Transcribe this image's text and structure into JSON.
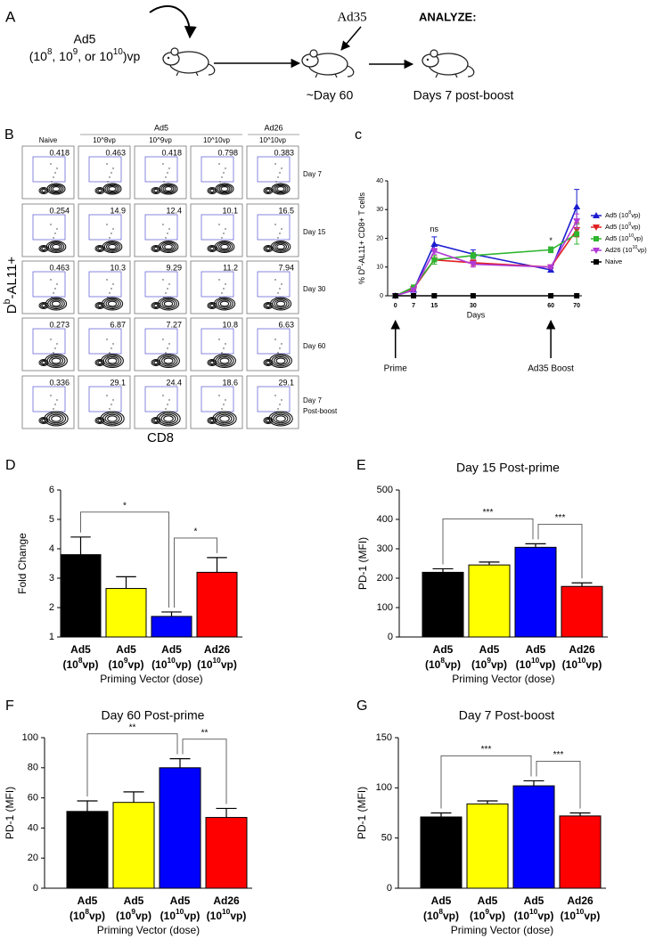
{
  "panel_a": {
    "label": "A",
    "vector": "Ad5",
    "dose": [
      "(10",
      "8",
      ", 10",
      "9",
      ", or 10",
      "10",
      ")vp"
    ],
    "boost": "Ad35",
    "analyze": "ANALYZE:",
    "boost_time": "~Day 60",
    "analysis_time": "Days 7 post-boost"
  },
  "panel_b": {
    "label": "B",
    "group_headers": [
      "Ad5",
      "Ad26"
    ],
    "columns": [
      "Naive",
      "10^8vp",
      "10^9vp",
      "10^10vp",
      "10^10vp"
    ],
    "rows": [
      [
        "Day 7"
      ],
      [
        "Day 15"
      ],
      [
        "Day 30"
      ],
      [
        "Day 60"
      ],
      [
        "Day 7",
        "Post-boost"
      ]
    ],
    "values": [
      [
        0.418,
        0.463,
        0.418,
        0.798,
        0.383
      ],
      [
        0.254,
        14.9,
        12.4,
        10.1,
        16.5
      ],
      [
        0.463,
        10.3,
        9.29,
        11.2,
        7.94
      ],
      [
        0.273,
        6.87,
        7.27,
        10.8,
        6.63
      ],
      [
        0.336,
        29.1,
        24.4,
        18.6,
        29.1
      ]
    ],
    "y_label": [
      "D",
      "b",
      "-AL11+"
    ],
    "x_label": "CD8"
  },
  "chart_data": [
    {
      "type": "line",
      "label": "c",
      "x": [
        0,
        7,
        15,
        30,
        60,
        70
      ],
      "xlim": [
        -3,
        72
      ],
      "xticks": [
        0,
        7,
        15,
        30,
        60,
        70
      ],
      "ylim": [
        0,
        40
      ],
      "yticks": [
        0,
        10,
        20,
        30,
        40
      ],
      "x_label": "Days",
      "y_label": [
        "% D",
        "b",
        "-AL11+ CD8+ T cells"
      ],
      "series": [
        {
          "name": [
            "Ad5 (10",
            "8",
            "vp)"
          ],
          "color": "#1c1ccf",
          "marker": "triangle-up",
          "values": [
            0,
            2,
            18,
            14.5,
            9,
            31
          ],
          "errors": [
            0,
            0.5,
            2.5,
            1.5,
            0.8,
            6
          ]
        },
        {
          "name": [
            "Ad5 (10",
            "9",
            "vp)"
          ],
          "color": "#e02020",
          "marker": "triangle-down",
          "values": [
            0,
            2.5,
            12.5,
            11.5,
            10,
            23
          ],
          "errors": [
            0,
            0.5,
            1.5,
            1,
            0.5,
            2.5
          ]
        },
        {
          "name": [
            "Ad5 (10",
            "10",
            "vp)"
          ],
          "color": "#2fb52f",
          "marker": "square",
          "values": [
            0,
            3,
            12.5,
            14,
            16,
            21.5
          ],
          "errors": [
            0,
            0.5,
            1.5,
            1,
            1,
            3.5
          ]
        },
        {
          "name": [
            "Ad26 (10",
            "10",
            "vp)"
          ],
          "color": "#b23ad6",
          "marker": "triangle-down",
          "values": [
            0,
            2,
            15.5,
            11,
            10,
            26
          ],
          "errors": [
            0,
            0.5,
            1,
            1,
            0.5,
            2.5
          ]
        },
        {
          "name": [
            "Naive"
          ],
          "color": "#000000",
          "marker": "square",
          "values": [
            0,
            0,
            0,
            0,
            0,
            0
          ],
          "errors": [
            0,
            0,
            0,
            0,
            0,
            0
          ]
        }
      ],
      "annotations": [
        {
          "text": "ns",
          "x": 15,
          "y": 23
        },
        {
          "text": "*",
          "x": 60,
          "y": 19
        }
      ],
      "events": [
        {
          "text": "Prime",
          "x": 0
        },
        {
          "text": "Ad35 Boost",
          "x": 60
        }
      ]
    },
    {
      "type": "bar",
      "label": "D",
      "categories": [
        "Ad5",
        "Ad5",
        "Ad5",
        "Ad26"
      ],
      "category_sublabels": [
        [
          "(10",
          "8",
          "vp)"
        ],
        [
          "(10",
          "9",
          "vp)"
        ],
        [
          "(10",
          "10",
          "vp)"
        ],
        [
          "(10",
          "10",
          "vp)"
        ]
      ],
      "values": [
        3.8,
        2.65,
        1.7,
        3.2
      ],
      "errors": [
        0.6,
        0.4,
        0.15,
        0.5
      ],
      "colors": [
        "#000000",
        "#ffff00",
        "#0000ff",
        "#ff0000"
      ],
      "ylim": [
        1,
        6
      ],
      "yticks": [
        1,
        2,
        3,
        4,
        5,
        6
      ],
      "y_label": "Fold Change",
      "x_label": "Priming Vector (dose)",
      "significance": [
        {
          "text": "*",
          "pair": [
            0,
            2
          ]
        },
        {
          "text": "*",
          "pair": [
            2,
            3
          ]
        }
      ]
    },
    {
      "type": "bar",
      "label": "E",
      "title": "Day 15 Post-prime",
      "categories": [
        "Ad5",
        "Ad5",
        "Ad5",
        "Ad26"
      ],
      "category_sublabels": [
        [
          "(10",
          "8",
          "vp)"
        ],
        [
          "(10",
          "9",
          "vp)"
        ],
        [
          "(10",
          "10",
          "vp)"
        ],
        [
          "(10",
          "10",
          "vp)"
        ]
      ],
      "values": [
        220,
        245,
        305,
        172
      ],
      "errors": [
        12,
        10,
        12,
        12
      ],
      "colors": [
        "#000000",
        "#ffff00",
        "#0000ff",
        "#ff0000"
      ],
      "ylim": [
        0,
        500
      ],
      "yticks": [
        0,
        100,
        200,
        300,
        400,
        500
      ],
      "y_label": "PD-1 (MFI)",
      "x_label": "Priming Vector (dose)",
      "significance": [
        {
          "text": "***",
          "pair": [
            0,
            2
          ]
        },
        {
          "text": "***",
          "pair": [
            2,
            3
          ]
        }
      ]
    },
    {
      "type": "bar",
      "label": "F",
      "title": "Day 60 Post-prime",
      "categories": [
        "Ad5",
        "Ad5",
        "Ad5",
        "Ad26"
      ],
      "category_sublabels": [
        [
          "(10",
          "8",
          "vp)"
        ],
        [
          "(10",
          "9",
          "vp)"
        ],
        [
          "(10",
          "10",
          "vp)"
        ],
        [
          "(10",
          "10",
          "vp)"
        ]
      ],
      "values": [
        51,
        57,
        80,
        47
      ],
      "errors": [
        7,
        7,
        6,
        6
      ],
      "colors": [
        "#000000",
        "#ffff00",
        "#0000ff",
        "#ff0000"
      ],
      "ylim": [
        0,
        100
      ],
      "yticks": [
        0,
        20,
        40,
        60,
        80,
        100
      ],
      "y_label": "PD-1 (MFI)",
      "x_label": "Priming Vector (dose)",
      "significance": [
        {
          "text": "**",
          "pair": [
            0,
            2
          ]
        },
        {
          "text": "**",
          "pair": [
            2,
            3
          ]
        }
      ]
    },
    {
      "type": "bar",
      "label": "G",
      "title": "Day 7 Post-boost",
      "categories": [
        "Ad5",
        "Ad5",
        "Ad5",
        "Ad26"
      ],
      "category_sublabels": [
        [
          "(10",
          "8",
          "vp)"
        ],
        [
          "(10",
          "9",
          "vp)"
        ],
        [
          "(10",
          "10",
          "vp)"
        ],
        [
          "(10",
          "10",
          "vp)"
        ]
      ],
      "values": [
        71,
        84,
        102,
        72
      ],
      "errors": [
        4,
        3,
        5,
        3
      ],
      "colors": [
        "#000000",
        "#ffff00",
        "#0000ff",
        "#ff0000"
      ],
      "ylim": [
        0,
        150
      ],
      "yticks": [
        0,
        50,
        100,
        150
      ],
      "y_label": "PD-1 (MFI)",
      "x_label": "Priming Vector (dose)",
      "significance": [
        {
          "text": "***",
          "pair": [
            0,
            2
          ]
        },
        {
          "text": "***",
          "pair": [
            2,
            3
          ]
        }
      ]
    }
  ]
}
